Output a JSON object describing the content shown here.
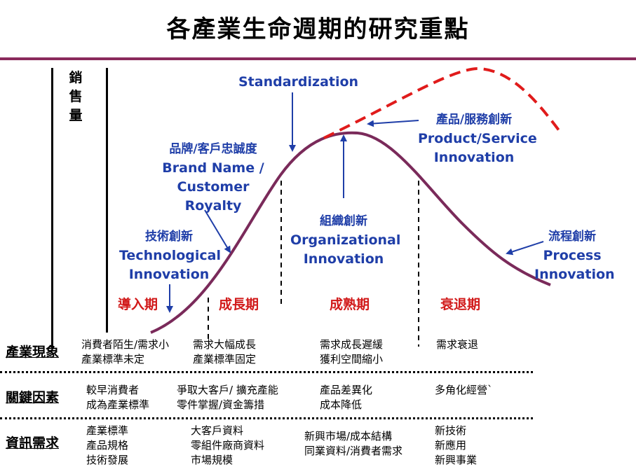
{
  "title": "各產業生命週期的研究重點",
  "y_axis_label": "銷售量",
  "annotations": {
    "standardization": "Standardization",
    "product_service": {
      "zh": "產品/服務創新",
      "en1": "Product/Service",
      "en2": "Innovation"
    },
    "brand": {
      "zh": "品牌/客戶忠誠度",
      "en1": "Brand Name /",
      "en2": "Customer",
      "en3": "Royalty"
    },
    "technological": {
      "zh": "技術創新",
      "en1": "Technological",
      "en2": "Innovation"
    },
    "organizational": {
      "zh": "組織創新",
      "en1": "Organizational",
      "en2": "Innovation"
    },
    "process": {
      "zh": "流程創新",
      "en1": "Process",
      "en2": "Innovation"
    }
  },
  "stages": [
    "導入期",
    "成長期",
    "成熟期",
    "衰退期"
  ],
  "rows": [
    {
      "header": "產業現象",
      "cells": [
        "消費者陌生/需求小\n產業標準未定",
        "需求大幅成長\n產業標準固定",
        "需求成長遲緩\n獲利空間縮小",
        "需求衰退"
      ]
    },
    {
      "header": "關鍵因素",
      "cells": [
        "較早消費者\n成為產業標準",
        "爭取大客戶/ 擴充產能\n零件掌握/資金籌措",
        "產品差異化\n成本降低",
        "多角化經營`"
      ]
    },
    {
      "header": "資訊需求",
      "cells": [
        "產業標準\n產品規格\n技術發展",
        "大客戶資料\n零組件廠商資料\n市場規模",
        "新興市場/成本結構\n同業資料/消費者需求",
        "新技術\n新應用\n新興事業"
      ]
    }
  ],
  "colors": {
    "curve": "#7a2a5a",
    "dashed_curve": "#e01b1b",
    "annotation": "#1f3ea8",
    "stage": "#d11a1a",
    "rule": "#8a2a5c"
  }
}
